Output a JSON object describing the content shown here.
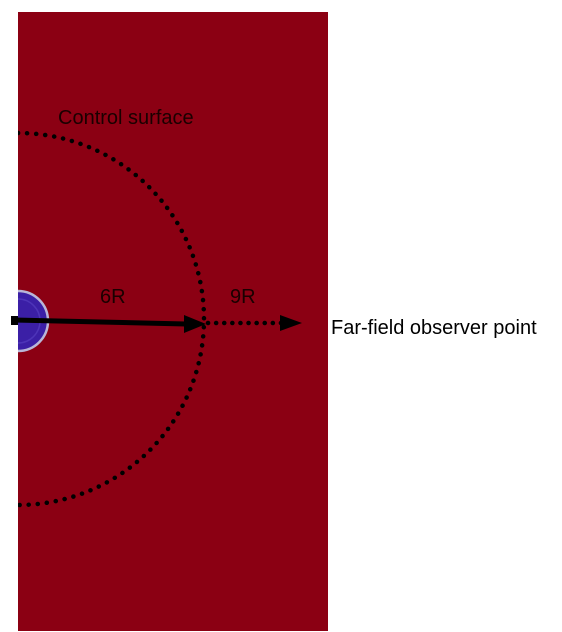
{
  "labels": {
    "control_surface": "Control surface",
    "inner_distance": "6R",
    "outer_distance": "9R",
    "observer": "Far-field observer point"
  },
  "colors": {
    "domain_fill": "#8b0013",
    "body_fill": "#3b1fa6",
    "body_edge": "#b9b6d8",
    "line": "#000000",
    "text_on_domain": "#1a0000",
    "text_outside": "#000000"
  }
}
